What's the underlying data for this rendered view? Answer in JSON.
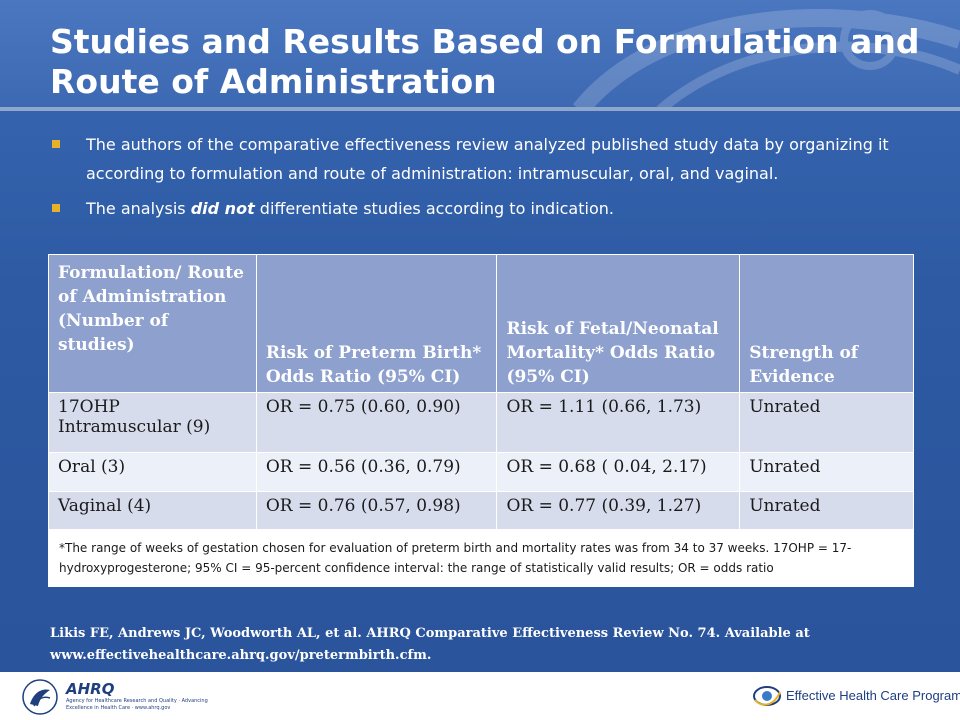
{
  "slide": {
    "title": "Studies and Results Based on Formulation and Route of Administration"
  },
  "bullets": [
    {
      "text": "The authors of the comparative effectiveness review analyzed published study data by organizing it according to formulation and route of administration: intramuscular, oral, and vaginal."
    },
    {
      "before": "The analysis ",
      "emphasis": "did not",
      "after": " differentiate studies according to indication."
    }
  ],
  "table": {
    "headers": [
      "Formulation/ Route of Administration (Number of studies)",
      "Risk of Preterm Birth* Odds Ratio (95% CI)",
      "Risk of Fetal/Neonatal Mortality* Odds Ratio (95% CI)",
      "Strength of Evidence"
    ],
    "rows": [
      [
        "17OHP Intramuscular (9)",
        "OR = 0.75 (0.60, 0.90)",
        "OR = 1.11 (0.66, 1.73)",
        "Unrated"
      ],
      [
        "Oral (3)",
        "OR = 0.56 (0.36, 0.79)",
        "OR = 0.68 ( 0.04, 2.17)",
        "Unrated"
      ],
      [
        "Vaginal (4)",
        "OR = 0.76 (0.57, 0.98)",
        "OR = 0.77 (0.39, 1.27)",
        "Unrated"
      ]
    ],
    "footnote": "*The range of weeks of gestation chosen for evaluation of preterm birth and mortality rates was from 34 to 37 weeks. 17OHP = 17-hydroxyprogesterone; 95% CI = 95-percent confidence interval: the range of statistically valid results; OR = odds ratio"
  },
  "citation": {
    "line1": "Likis FE, Andrews JC, Woodworth AL, et al. AHRQ Comparative Effectiveness Review No. 74. Available at",
    "line2": "www.effectivehealthcare.ahrq.gov/pretermbirth.cfm."
  },
  "footer": {
    "hhs_icon": "hhs-eagle-icon",
    "agency_name": "AHRQ",
    "agency_tagline": "Agency for Healthcare Research and Quality · Advancing Excellence in Health Care · www.ahrq.gov",
    "program_icon": "ehc-swirl-icon",
    "program_name": "Effective Health Care Program"
  },
  "colors": {
    "background": "#2c57a0",
    "header_fill": "#8da0ce",
    "row_dark": "#d6dcec",
    "row_light": "#ecf0f8",
    "bullet_accent": "#e7b22a"
  }
}
